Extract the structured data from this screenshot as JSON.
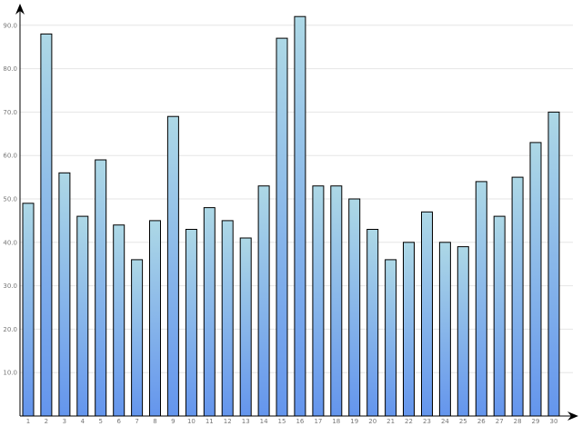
{
  "chart_data": {
    "type": "bar",
    "title": "",
    "xlabel": "",
    "ylabel": "",
    "categories": [
      "1",
      "2",
      "3",
      "4",
      "5",
      "6",
      "7",
      "8",
      "9",
      "10",
      "11",
      "12",
      "13",
      "14",
      "15",
      "16",
      "17",
      "18",
      "19",
      "20",
      "21",
      "22",
      "23",
      "24",
      "25",
      "26",
      "27",
      "28",
      "29",
      "30"
    ],
    "values": [
      49,
      88,
      56,
      46,
      59,
      44,
      36,
      45,
      69,
      43,
      48,
      45,
      41,
      53,
      87,
      92,
      53,
      53,
      50,
      43,
      36,
      40,
      47,
      40,
      39,
      54,
      46,
      55,
      63,
      70
    ],
    "ylim": [
      0,
      95
    ],
    "yticks": [
      "10.0",
      "20.0",
      "30.0",
      "40.0",
      "50.0",
      "60.0",
      "70.0",
      "80.0",
      "90.0"
    ],
    "grid": true,
    "legend": "none",
    "colors": {
      "bar_top": "#add8e6",
      "bar_bottom": "#6495ed",
      "bar_stroke": "#000000",
      "grid": "#e6e6e6",
      "tick_text": "#777777",
      "axis": "#000000"
    }
  }
}
